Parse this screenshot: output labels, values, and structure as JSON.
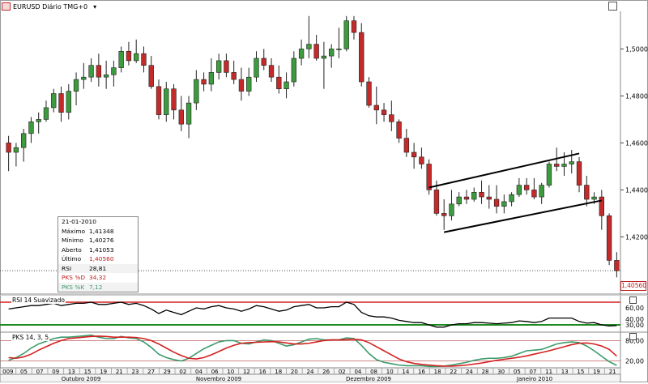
{
  "header": {
    "symbol_title": "EURUSD Diário TMG+0",
    "dropdown_glyph": "▾"
  },
  "info_panel": {
    "date": "21-01-2010",
    "rows": [
      {
        "label": "Máximo",
        "value": "1,41348"
      },
      {
        "label": "Mínimo",
        "value": "1,40276"
      },
      {
        "label": "Aberto",
        "value": "1,41053"
      },
      {
        "label": "Último",
        "value": "1,40560"
      },
      {
        "label": "RSI",
        "value": "28,81"
      },
      {
        "label": "PKS %D",
        "value": "34,32"
      },
      {
        "label": "PKS %K",
        "value": "7,12"
      }
    ]
  },
  "last_price_tag": "1,40560",
  "rsi_label": "RSI 14 Suavizado",
  "pks_label": "PKS 14, 3, 5",
  "colors": {
    "up": "#3c9b3c",
    "down": "#c42a2a",
    "rsi": "#000000",
    "pks_d": "#d42020",
    "pks_k": "#3c9b6c",
    "level_red": "#d42020",
    "level_green": "#1f8a1f"
  },
  "chart_data": {
    "type": "candlestick",
    "x": [
      "2009-09-30",
      "2009-10-01",
      "2009-10-02",
      "2009-10-05",
      "2009-10-06",
      "2009-10-07",
      "2009-10-08",
      "2009-10-09",
      "2009-10-12",
      "2009-10-13",
      "2009-10-14",
      "2009-10-15",
      "2009-10-16",
      "2009-10-19",
      "2009-10-20",
      "2009-10-21",
      "2009-10-22",
      "2009-10-23",
      "2009-10-26",
      "2009-10-27",
      "2009-10-28",
      "2009-10-29",
      "2009-10-30",
      "2009-11-02",
      "2009-11-03",
      "2009-11-04",
      "2009-11-05",
      "2009-11-06",
      "2009-11-09",
      "2009-11-10",
      "2009-11-11",
      "2009-11-12",
      "2009-11-13",
      "2009-11-16",
      "2009-11-17",
      "2009-11-18",
      "2009-11-19",
      "2009-11-20",
      "2009-11-23",
      "2009-11-24",
      "2009-11-25",
      "2009-11-26",
      "2009-11-27",
      "2009-11-30",
      "2009-12-01",
      "2009-12-02",
      "2009-12-03",
      "2009-12-04",
      "2009-12-07",
      "2009-12-08",
      "2009-12-09",
      "2009-12-10",
      "2009-12-11",
      "2009-12-14",
      "2009-12-15",
      "2009-12-16",
      "2009-12-17",
      "2009-12-18",
      "2009-12-21",
      "2009-12-22",
      "2009-12-23",
      "2009-12-24",
      "2009-12-25",
      "2009-12-28",
      "2009-12-29",
      "2009-12-30",
      "2009-12-31",
      "2010-01-01",
      "2010-01-04",
      "2010-01-05",
      "2010-01-06",
      "2010-01-07",
      "2010-01-08",
      "2010-01-11",
      "2010-01-12",
      "2010-01-13",
      "2010-01-14",
      "2010-01-15",
      "2010-01-18",
      "2010-01-19",
      "2010-01-20",
      "2010-01-21"
    ],
    "open": [
      1.46,
      1.456,
      1.458,
      1.464,
      1.469,
      1.47,
      1.475,
      1.481,
      1.473,
      1.482,
      1.487,
      1.488,
      1.493,
      1.488,
      1.489,
      1.492,
      1.499,
      1.495,
      1.498,
      1.493,
      1.484,
      1.472,
      1.483,
      1.474,
      1.468,
      1.477,
      1.487,
      1.485,
      1.49,
      1.495,
      1.49,
      1.487,
      1.482,
      1.488,
      1.496,
      1.493,
      1.488,
      1.483,
      1.486,
      1.496,
      1.5,
      1.502,
      1.496,
      1.497,
      1.5,
      1.5,
      1.512,
      1.507,
      1.486,
      1.476,
      1.474,
      1.472,
      1.469,
      1.462,
      1.456,
      1.454,
      1.451,
      1.44,
      1.43,
      1.429,
      1.434,
      1.437,
      1.436,
      1.439,
      1.437,
      1.436,
      1.433,
      1.435,
      1.438,
      1.442,
      1.44,
      1.437,
      1.442,
      1.451,
      1.45,
      1.451,
      1.452,
      1.442,
      1.436,
      1.437,
      1.429,
      1.41
    ],
    "high": [
      1.463,
      1.46,
      1.466,
      1.471,
      1.473,
      1.478,
      1.483,
      1.484,
      1.485,
      1.49,
      1.494,
      1.496,
      1.498,
      1.495,
      1.495,
      1.501,
      1.503,
      1.504,
      1.501,
      1.497,
      1.487,
      1.486,
      1.485,
      1.48,
      1.48,
      1.491,
      1.49,
      1.496,
      1.498,
      1.498,
      1.495,
      1.492,
      1.492,
      1.499,
      1.5,
      1.496,
      1.493,
      1.49,
      1.499,
      1.504,
      1.514,
      1.506,
      1.503,
      1.502,
      1.509,
      1.514,
      1.514,
      1.511,
      1.488,
      1.484,
      1.477,
      1.478,
      1.47,
      1.466,
      1.46,
      1.458,
      1.453,
      1.444,
      1.436,
      1.44,
      1.439,
      1.44,
      1.441,
      1.444,
      1.442,
      1.442,
      1.438,
      1.439,
      1.445,
      1.445,
      1.445,
      1.443,
      1.452,
      1.458,
      1.456,
      1.457,
      1.454,
      1.446,
      1.439,
      1.44,
      1.43,
      1.4135
    ],
    "low": [
      1.448,
      1.45,
      1.452,
      1.46,
      1.464,
      1.469,
      1.473,
      1.469,
      1.47,
      1.476,
      1.483,
      1.486,
      1.484,
      1.483,
      1.484,
      1.49,
      1.493,
      1.494,
      1.49,
      1.483,
      1.47,
      1.469,
      1.47,
      1.465,
      1.462,
      1.474,
      1.482,
      1.482,
      1.487,
      1.488,
      1.485,
      1.478,
      1.48,
      1.486,
      1.491,
      1.486,
      1.481,
      1.479,
      1.484,
      1.493,
      1.496,
      1.495,
      1.483,
      1.492,
      1.496,
      1.499,
      1.504,
      1.484,
      1.475,
      1.468,
      1.469,
      1.465,
      1.46,
      1.454,
      1.449,
      1.449,
      1.438,
      1.429,
      1.423,
      1.427,
      1.433,
      1.434,
      1.435,
      1.434,
      1.432,
      1.43,
      1.43,
      1.433,
      1.437,
      1.438,
      1.436,
      1.434,
      1.441,
      1.448,
      1.446,
      1.447,
      1.439,
      1.433,
      1.434,
      1.423,
      1.408,
      1.4028
    ],
    "close": [
      1.456,
      1.458,
      1.464,
      1.469,
      1.47,
      1.475,
      1.481,
      1.473,
      1.482,
      1.487,
      1.488,
      1.493,
      1.488,
      1.489,
      1.492,
      1.499,
      1.495,
      1.498,
      1.493,
      1.484,
      1.472,
      1.483,
      1.474,
      1.468,
      1.477,
      1.487,
      1.485,
      1.49,
      1.495,
      1.49,
      1.487,
      1.482,
      1.488,
      1.496,
      1.493,
      1.488,
      1.483,
      1.486,
      1.496,
      1.5,
      1.502,
      1.496,
      1.497,
      1.5,
      1.5,
      1.512,
      1.507,
      1.486,
      1.476,
      1.474,
      1.472,
      1.469,
      1.462,
      1.456,
      1.454,
      1.451,
      1.44,
      1.43,
      1.429,
      1.434,
      1.437,
      1.436,
      1.439,
      1.437,
      1.436,
      1.433,
      1.435,
      1.438,
      1.442,
      1.44,
      1.437,
      1.442,
      1.451,
      1.45,
      1.451,
      1.452,
      1.442,
      1.436,
      1.437,
      1.429,
      1.41,
      1.4056
    ],
    "ylim": [
      1.396,
      1.516
    ],
    "y_ticks": [
      "1,50000",
      "1,48000",
      "1,46000",
      "1,44000",
      "1,42000"
    ],
    "y_tick_values": [
      1.5,
      1.48,
      1.46,
      1.44,
      1.42
    ],
    "channel": {
      "upper": [
        [
          "2009-12-17",
          1.441
        ],
        [
          "2010-01-14",
          1.4555
        ]
      ],
      "lower": [
        [
          "2009-12-21",
          1.422
        ],
        [
          "2010-01-19",
          1.4355
        ]
      ]
    },
    "last_price_line": 1.4056,
    "x_tick_labels": [
      "009",
      "05",
      "07",
      "09",
      "13",
      "15",
      "19",
      "21",
      "23",
      "27",
      "29",
      "02",
      "04",
      "06",
      "10",
      "12",
      "16",
      "18",
      "20",
      "24",
      "26",
      "02",
      "04",
      "08",
      "10",
      "14",
      "16",
      "18",
      "22",
      "24",
      "28",
      "30",
      "05",
      "07",
      "11",
      "13",
      "15",
      "19",
      "21"
    ],
    "month_labels": [
      "Outubro 2009",
      "Novembro 2009",
      "Dezembro 2009",
      "Janeiro 2010"
    ],
    "rsi": {
      "values": [
        58,
        60,
        62,
        64,
        64,
        66,
        68,
        64,
        66,
        68,
        68,
        70,
        66,
        66,
        68,
        70,
        66,
        68,
        64,
        58,
        50,
        56,
        52,
        48,
        54,
        60,
        58,
        62,
        64,
        60,
        58,
        54,
        58,
        64,
        62,
        58,
        54,
        56,
        62,
        64,
        66,
        60,
        60,
        62,
        62,
        70,
        66,
        52,
        46,
        44,
        44,
        42,
        38,
        36,
        34,
        34,
        30,
        26,
        26,
        30,
        32,
        32,
        34,
        34,
        33,
        32,
        33,
        34,
        37,
        36,
        34,
        36,
        42,
        42,
        42,
        42,
        36,
        33,
        34,
        30,
        28,
        28.81
      ],
      "ylim": [
        20,
        80
      ],
      "ticks": [
        "60,00",
        "40,00",
        "30,00"
      ],
      "levels": [
        70,
        30
      ]
    },
    "pks": {
      "k": [
        22,
        30,
        42,
        58,
        70,
        78,
        86,
        90,
        90,
        92,
        94,
        96,
        90,
        86,
        86,
        92,
        88,
        86,
        76,
        60,
        40,
        30,
        24,
        20,
        28,
        42,
        56,
        66,
        76,
        80,
        80,
        72,
        70,
        76,
        82,
        80,
        72,
        64,
        68,
        76,
        84,
        86,
        82,
        82,
        82,
        88,
        86,
        66,
        42,
        24,
        16,
        12,
        8,
        6,
        6,
        6,
        4,
        4,
        5,
        8,
        12,
        16,
        22,
        26,
        28,
        28,
        30,
        34,
        42,
        50,
        52,
        54,
        62,
        70,
        74,
        76,
        74,
        64,
        50,
        34,
        18,
        7.12
      ],
      "d": [
        30,
        28,
        32,
        40,
        52,
        62,
        72,
        80,
        86,
        88,
        90,
        92,
        93,
        92,
        90,
        90,
        90,
        89,
        86,
        80,
        70,
        58,
        46,
        36,
        28,
        26,
        30,
        38,
        48,
        58,
        66,
        72,
        74,
        75,
        76,
        77,
        76,
        73,
        70,
        70,
        72,
        76,
        80,
        82,
        82,
        83,
        84,
        82,
        74,
        62,
        50,
        38,
        26,
        18,
        13,
        10,
        8,
        6,
        5,
        5,
        6,
        8,
        11,
        14,
        18,
        22,
        25,
        28,
        31,
        35,
        40,
        45,
        50,
        56,
        62,
        68,
        72,
        73,
        70,
        64,
        54,
        34.32
      ],
      "ylim": [
        0,
        100
      ],
      "ticks": [
        "80,00",
        "20,00"
      ],
      "levels": [
        80,
        20
      ]
    }
  }
}
